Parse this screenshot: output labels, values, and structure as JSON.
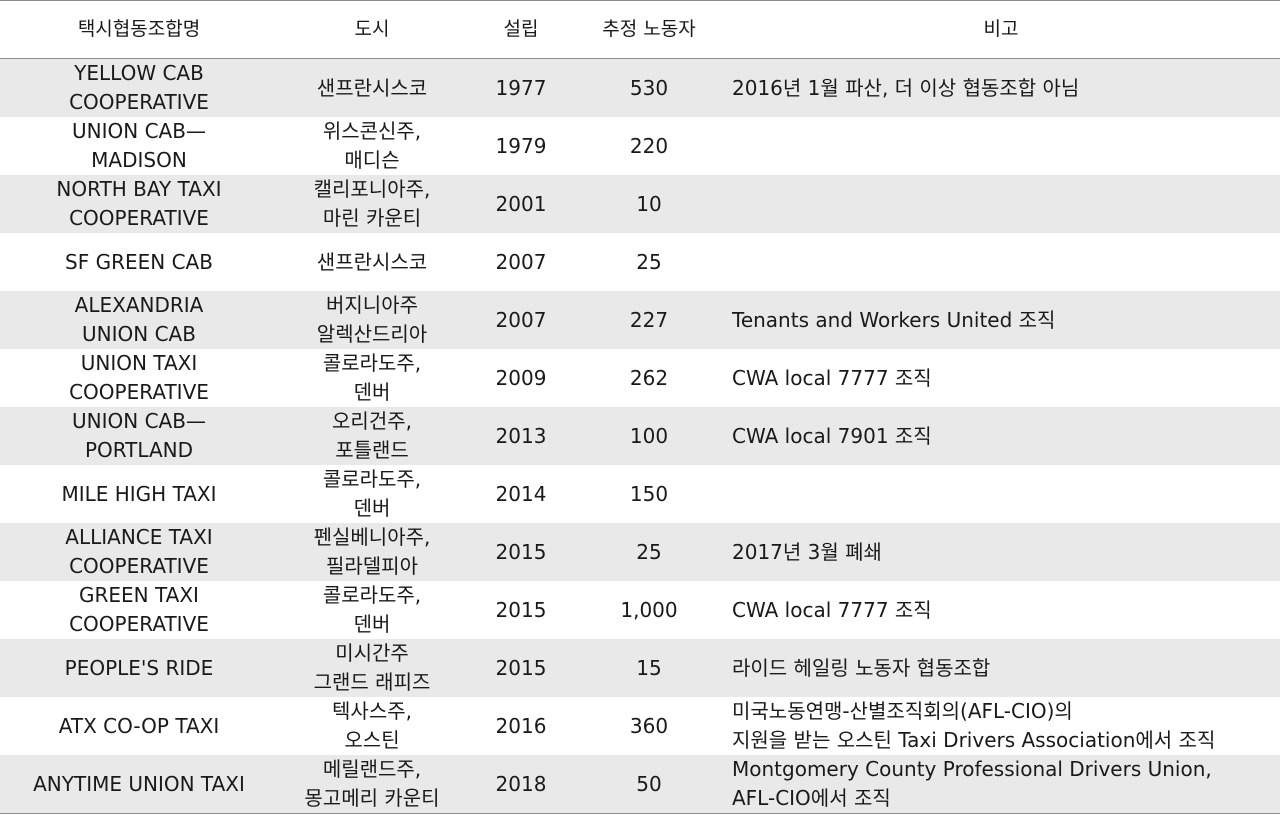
{
  "headers": {
    "name": "택시협동조합명",
    "city": "도시",
    "year": "설립",
    "workers": "추정 노동자",
    "note": "비고"
  },
  "rows": [
    {
      "name": "YELLOW CAB\nCOOPERATIVE",
      "city": "샌프란시스코",
      "year": "1977",
      "workers": "530",
      "note": "2016년 1월 파산, 더 이상 협동조합 아님"
    },
    {
      "name": "UNION CAB—\nMADISON",
      "city": "위스콘신주,\n매디슨",
      "year": "1979",
      "workers": "220",
      "note": ""
    },
    {
      "name": "NORTH BAY TAXI\nCOOPERATIVE",
      "city": "캘리포니아주,\n마린 카운티",
      "year": "2001",
      "workers": "10",
      "note": ""
    },
    {
      "name": "SF GREEN CAB",
      "city": "샌프란시스코",
      "year": "2007",
      "workers": "25",
      "note": ""
    },
    {
      "name": "ALEXANDRIA\nUNION CAB",
      "city": "버지니아주\n알렉산드리아",
      "year": "2007",
      "workers": "227",
      "note": "Tenants and Workers United 조직"
    },
    {
      "name": "UNION TAXI\nCOOPERATIVE",
      "city": "콜로라도주,\n덴버",
      "year": "2009",
      "workers": "262",
      "note": "CWA local 7777 조직"
    },
    {
      "name": "UNION CAB—\nPORTLAND",
      "city": "오리건주,\n포틀랜드",
      "year": "2013",
      "workers": "100",
      "note": "CWA local 7901 조직"
    },
    {
      "name": "MILE HIGH TAXI",
      "city": "콜로라도주,\n덴버",
      "year": "2014",
      "workers": "150",
      "note": ""
    },
    {
      "name": "ALLIANCE TAXI\nCOOPERATIVE",
      "city": "펜실베니아주,\n필라델피아",
      "year": "2015",
      "workers": "25",
      "note": "2017년 3월 폐쇄"
    },
    {
      "name": "GREEN TAXI\nCOOPERATIVE",
      "city": "콜로라도주,\n덴버",
      "year": "2015",
      "workers": "1,000",
      "note": "CWA local 7777 조직"
    },
    {
      "name": "PEOPLE'S RIDE",
      "city": "미시간주\n그랜드 래피즈",
      "year": "2015",
      "workers": "15",
      "note": "라이드 헤일링 노동자 협동조합"
    },
    {
      "name": "ATX CO-OP TAXI",
      "city": "텍사스주,\n오스틴",
      "year": "2016",
      "workers": "360",
      "note": "미국노동연맹-산별조직회의(AFL-CIO)의\n지원을 받는 오스틴 Taxi Drivers Association에서 조직"
    },
    {
      "name": "ANYTIME UNION TAXI",
      "city": "메릴랜드주,\n몽고메리 카운티",
      "year": "2018",
      "workers": "50",
      "note": "Montgomery County Professional Drivers Union,\nAFL-CIO에서 조직"
    }
  ]
}
